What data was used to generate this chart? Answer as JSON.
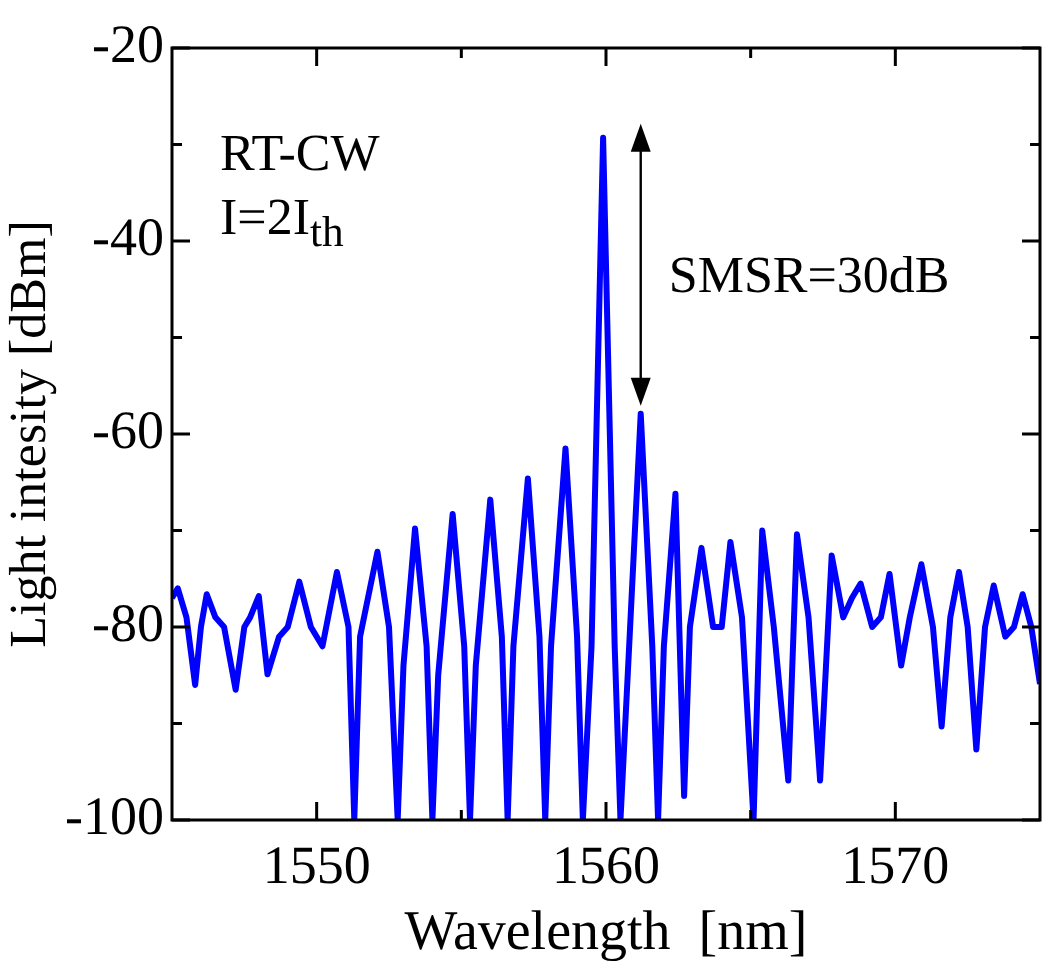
{
  "chart_data": {
    "type": "line",
    "xlabel": "Wavelength  [nm]",
    "ylabel": "Light intesity [dBm]",
    "xlim": [
      1545,
      1575
    ],
    "ylim": [
      -100,
      -20
    ],
    "xticks": [
      1550,
      {
        "value": 1555,
        "label": null
      },
      1560,
      {
        "value": 1565,
        "label": null
      },
      1570
    ],
    "yticks": [
      -100,
      {
        "value": -90,
        "label": null
      },
      -80,
      {
        "value": -70,
        "label": null
      },
      -60,
      {
        "value": -50,
        "label": null
      },
      -40,
      {
        "value": -30,
        "label": null
      },
      -20
    ],
    "grid": false,
    "legend": false,
    "marker": "none",
    "line_style": "solid",
    "annotations": [
      "RT-CW",
      "I=2I$_{th}$",
      "SMSR=30dB"
    ],
    "series": [
      {
        "color": "#0000ff",
        "x": [
          1545.0,
          1545.2,
          1545.5,
          1545.8,
          1546.0,
          1546.2,
          1546.5,
          1546.8,
          1547.2,
          1547.5,
          1547.7,
          1548.0,
          1548.3,
          1548.7,
          1549.0,
          1549.4,
          1549.8,
          1550.2,
          1550.7,
          1551.1,
          1551.3,
          1551.5,
          1552.1,
          1552.5,
          1552.8,
          1553.0,
          1553.4,
          1553.8,
          1554.0,
          1554.2,
          1554.7,
          1555.1,
          1555.3,
          1555.5,
          1556.0,
          1556.4,
          1556.6,
          1556.8,
          1557.3,
          1557.7,
          1557.9,
          1558.1,
          1558.6,
          1559.0,
          1559.2,
          1559.5,
          1559.9,
          1560.3,
          1560.5,
          1560.8,
          1561.2,
          1561.6,
          1561.8,
          1562.0,
          1562.4,
          1562.7,
          1562.9,
          1563.3,
          1563.7,
          1564.0,
          1564.3,
          1564.7,
          1565.1,
          1565.4,
          1565.8,
          1566.3,
          1566.6,
          1567.0,
          1567.4,
          1567.8,
          1568.2,
          1568.5,
          1568.8,
          1569.2,
          1569.5,
          1569.8,
          1570.2,
          1570.5,
          1570.9,
          1571.3,
          1571.6,
          1571.9,
          1572.2,
          1572.5,
          1572.8,
          1573.1,
          1573.4,
          1573.8,
          1574.1,
          1574.4,
          1574.7,
          1575.0
        ],
        "values": [
          -77,
          -76,
          -79,
          -86,
          -80,
          -76.6,
          -79,
          -80,
          -86.5,
          -80,
          -79,
          -76.8,
          -84.9,
          -81,
          -80,
          -75.3,
          -80,
          -82,
          -74.3,
          -80,
          -100,
          -81,
          -72.2,
          -80,
          -100,
          -84,
          -69.8,
          -82,
          -100,
          -85,
          -68.3,
          -82,
          -100,
          -84,
          -66.8,
          -81,
          -100,
          -82,
          -64.6,
          -81,
          -100,
          -82,
          -61.5,
          -81,
          -100,
          -82,
          -29.3,
          -82,
          -100,
          -82,
          -57.9,
          -82,
          -100,
          -82,
          -66.2,
          -97.5,
          -80,
          -71.8,
          -80,
          -80,
          -71.2,
          -79,
          -100,
          -70.0,
          -80,
          -95.9,
          -70.4,
          -79,
          -95.9,
          -72.6,
          -79,
          -77,
          -75.5,
          -80,
          -79,
          -74.5,
          -84,
          -79,
          -73.5,
          -80,
          -90.3,
          -79,
          -74.3,
          -80,
          -92.7,
          -80,
          -75.7,
          -81,
          -80,
          -76.6,
          -80,
          -85.9
        ]
      }
    ]
  }
}
